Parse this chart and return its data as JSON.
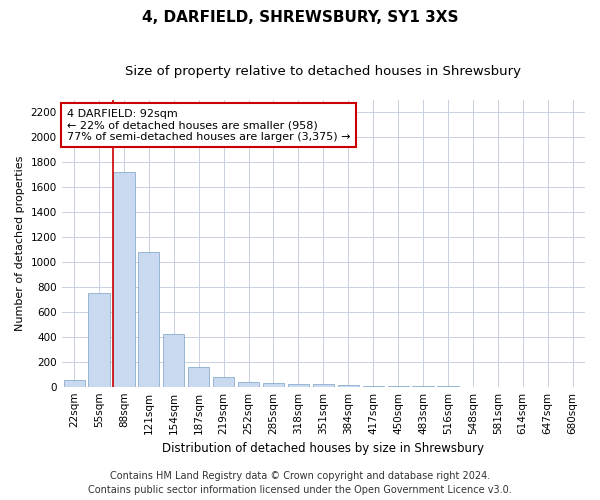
{
  "title": "4, DARFIELD, SHREWSBURY, SY1 3XS",
  "subtitle": "Size of property relative to detached houses in Shrewsbury",
  "xlabel": "Distribution of detached houses by size in Shrewsbury",
  "ylabel": "Number of detached properties",
  "categories": [
    "22sqm",
    "55sqm",
    "88sqm",
    "121sqm",
    "154sqm",
    "187sqm",
    "219sqm",
    "252sqm",
    "285sqm",
    "318sqm",
    "351sqm",
    "384sqm",
    "417sqm",
    "450sqm",
    "483sqm",
    "516sqm",
    "548sqm",
    "581sqm",
    "614sqm",
    "647sqm",
    "680sqm"
  ],
  "values": [
    50,
    750,
    1720,
    1080,
    420,
    160,
    75,
    40,
    30,
    25,
    20,
    15,
    8,
    4,
    3,
    2,
    1,
    1,
    0,
    0,
    0
  ],
  "bar_color": "#c9d9f0",
  "bar_edge_color": "#7aa0c4",
  "vline_color": "#cc0000",
  "vline_x_index": 2,
  "annotation_text_line1": "4 DARFIELD: 92sqm",
  "annotation_text_line2": "← 22% of detached houses are smaller (958)",
  "annotation_text_line3": "77% of semi-detached houses are larger (3,375) →",
  "annotation_box_color": "#ffffff",
  "annotation_box_edge_color": "#cc0000",
  "ylim": [
    0,
    2300
  ],
  "yticks": [
    0,
    200,
    400,
    600,
    800,
    1000,
    1200,
    1400,
    1600,
    1800,
    2000,
    2200
  ],
  "footer_line1": "Contains HM Land Registry data © Crown copyright and database right 2024.",
  "footer_line2": "Contains public sector information licensed under the Open Government Licence v3.0.",
  "bg_color": "#ffffff",
  "grid_color": "#c8d0e0",
  "title_fontsize": 11,
  "subtitle_fontsize": 9.5,
  "xlabel_fontsize": 8.5,
  "ylabel_fontsize": 8,
  "tick_fontsize": 7.5,
  "annotation_fontsize": 8,
  "footer_fontsize": 7
}
